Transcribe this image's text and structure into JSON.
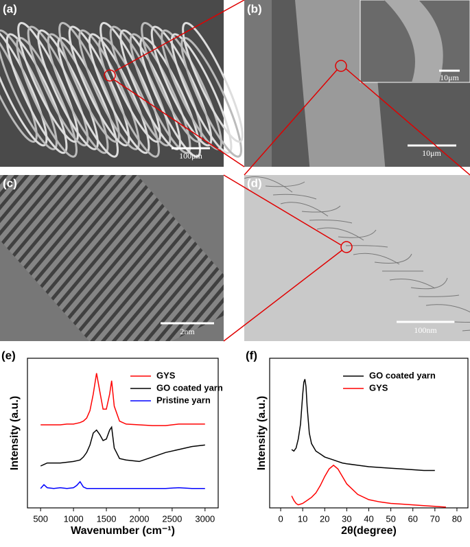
{
  "panels": [
    {
      "label": "(a)",
      "scale_bar": "100μm"
    },
    {
      "label": "(b)",
      "scale_bar": "10μm",
      "inset_scale_bar": "10μm"
    },
    {
      "label": "(c)",
      "scale_bar": "2nm"
    },
    {
      "label": "(d)",
      "scale_bar": "100nm"
    }
  ],
  "chart_data": [
    {
      "type": "line",
      "panel_label": "(e)",
      "x_label": "Wavenumber (cm⁻¹)",
      "y_label": "Intensity (a.u.)",
      "x": [
        500,
        550,
        600,
        700,
        800,
        900,
        1000,
        1050,
        1100,
        1150,
        1200,
        1250,
        1300,
        1350,
        1400,
        1450,
        1500,
        1550,
        1580,
        1620,
        1700,
        1800,
        2000,
        2200,
        2400,
        2600,
        2800,
        3000
      ],
      "xlim": [
        300,
        3200
      ],
      "xticks": [
        500,
        1000,
        1500,
        2000,
        2500,
        3000
      ],
      "ylim": [
        0,
        10
      ],
      "legend": "upper right",
      "series": [
        {
          "name": "GYS",
          "color": "#ff0000",
          "values": [
            5.55,
            5.55,
            5.55,
            5.55,
            5.55,
            5.6,
            5.6,
            5.65,
            5.7,
            5.8,
            6.0,
            6.5,
            7.6,
            9.0,
            7.8,
            6.6,
            6.6,
            7.6,
            8.5,
            6.8,
            5.8,
            5.6,
            5.55,
            5.5,
            5.5,
            5.6,
            5.6,
            5.6
          ]
        },
        {
          "name": "GO coated yarn",
          "color": "#000000",
          "values": [
            2.8,
            2.9,
            3.0,
            3.0,
            3.0,
            3.05,
            3.1,
            3.15,
            3.2,
            3.4,
            3.7,
            4.2,
            5.0,
            5.2,
            4.9,
            4.5,
            4.6,
            5.2,
            5.4,
            4.0,
            3.3,
            3.2,
            3.1,
            3.4,
            3.7,
            3.9,
            4.1,
            4.2
          ]
        },
        {
          "name": "Pristine yarn",
          "color": "#0000ff",
          "values": [
            1.3,
            1.55,
            1.35,
            1.3,
            1.35,
            1.3,
            1.35,
            1.5,
            1.75,
            1.4,
            1.3,
            1.3,
            1.3,
            1.3,
            1.3,
            1.3,
            1.3,
            1.3,
            1.3,
            1.3,
            1.3,
            1.3,
            1.3,
            1.3,
            1.3,
            1.35,
            1.3,
            1.3
          ]
        }
      ]
    },
    {
      "type": "line",
      "panel_label": "(f)",
      "x_label": "2θ(degree)",
      "y_label": "Intensity (a.u.)",
      "x": [
        5,
        6,
        7,
        8,
        9,
        10,
        10.5,
        11,
        11.5,
        12,
        13,
        14,
        16,
        18,
        20,
        22,
        24,
        26,
        28,
        30,
        35,
        40,
        45,
        50,
        55,
        60,
        65,
        70,
        75
      ],
      "xlim": [
        -5,
        85
      ],
      "xticks": [
        0,
        10,
        20,
        30,
        40,
        50,
        60,
        70,
        80
      ],
      "ylim": [
        0,
        10
      ],
      "legend": "upper right",
      "series": [
        {
          "name": "GO coated yarn",
          "color": "#000000",
          "values": [
            3.9,
            3.8,
            4.0,
            4.6,
            5.6,
            7.6,
            8.4,
            8.6,
            8.1,
            6.8,
            5.0,
            4.3,
            3.8,
            3.6,
            3.4,
            3.3,
            3.2,
            3.1,
            3.0,
            2.95,
            2.85,
            2.75,
            2.7,
            2.65,
            2.6,
            2.55,
            2.5,
            2.5,
            null
          ]
        },
        {
          "name": "GYS",
          "color": "#ff0000",
          "values": [
            0.8,
            0.5,
            0.3,
            0.2,
            0.25,
            0.3,
            0.35,
            0.4,
            0.45,
            0.5,
            0.6,
            0.7,
            1.0,
            1.5,
            2.1,
            2.6,
            2.85,
            2.6,
            2.1,
            1.6,
            0.9,
            0.55,
            0.4,
            0.3,
            0.25,
            0.2,
            0.15,
            0.1,
            0.05
          ]
        }
      ]
    }
  ]
}
